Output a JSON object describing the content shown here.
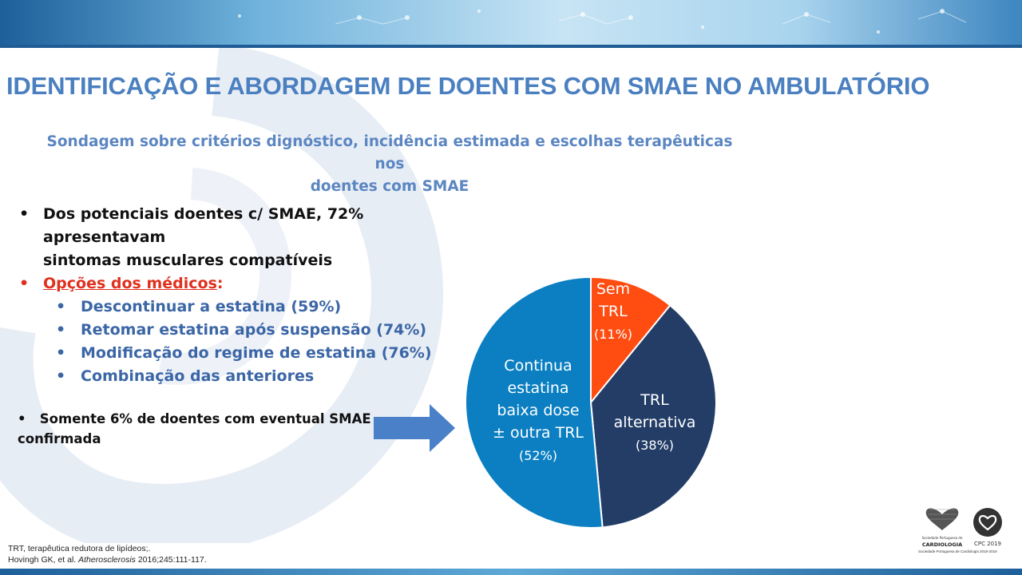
{
  "slide": {
    "title": "IDENTIFICAÇÃO E ABORDAGEM DE DOENTES COM SMAE NO AMBULATÓRIO",
    "subtitle_line1": "Sondagem sobre critérios dignóstico, incidência estimada e escolhas terapêuticas nos",
    "subtitle_line2": "doentes  com SMAE"
  },
  "bullets": {
    "b1_line1": "Dos potenciais doentes c/ SMAE, 72% apresentavam",
    "b1_line2": "sintomas musculares compatíveis",
    "b2": "Opções dos médicos",
    "b2_suffix": ":",
    "sub": [
      "Descontinuar a estatina (59%)",
      "Retomar estatina após suspensão (74%)",
      "Modificação do regime de estatina (76%)",
      "Combinação das anteriores"
    ],
    "b3_line1": "Somente  6% de doentes com eventual SMAE",
    "b3_line2": "confirmada"
  },
  "chart_data": {
    "type": "pie",
    "slices": [
      {
        "label_lines": [
          "Sem",
          "TRL",
          "(11%)"
        ],
        "value": 11,
        "color": "#ff4d12"
      },
      {
        "label_lines": [
          "TRL",
          "alternativa",
          "(38%)"
        ],
        "value": 38,
        "color": "#233d67"
      },
      {
        "label_lines": [
          "Continua",
          "estatina",
          "baixa dose",
          "± outra TRL",
          "(52%)"
        ],
        "value": 52,
        "color": "#0b7fc2"
      }
    ]
  },
  "footnote": {
    "line1": "TRT, terapêutica redutora de lipídeos;.",
    "line2_pre": "Hovingh GK, et al. ",
    "line2_journal": "Atherosclerosis",
    "line2_post": " 2016;245:111-117."
  },
  "logos": {
    "spc_name": "CARDIOLOGIA",
    "spc_small": "Sociedade Portuguesa de",
    "cpc": "CPC 2019",
    "strip": "Sociedade Portuguesa de Cardiologia 2018-2019"
  },
  "colors": {
    "title": "#4a7fc0",
    "subtitle": "#5b86c2",
    "highlight": "#e0301e",
    "sub_bullets": "#3b66a6",
    "arrow": "#4a80c8"
  }
}
